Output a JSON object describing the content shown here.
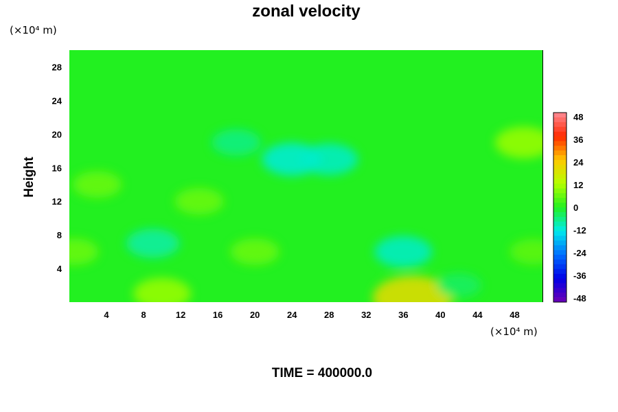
{
  "chart_data": {
    "type": "heatmap",
    "title": "zonal velocity",
    "ylabel": "Height",
    "xlabel": "",
    "x_unit": "(×10⁴ m)",
    "y_unit": "(×10⁴ m)",
    "xlim": [
      0,
      51
    ],
    "ylim": [
      0,
      30
    ],
    "x_ticks": [
      "4",
      "8",
      "12",
      "16",
      "20",
      "24",
      "28",
      "32",
      "36",
      "40",
      "44",
      "48"
    ],
    "y_ticks": [
      "4",
      "8",
      "12",
      "16",
      "20",
      "24",
      "28"
    ],
    "colorbar": {
      "range": [
        -48,
        48
      ],
      "labels": [
        "48",
        "36",
        "24",
        "12",
        "0",
        "-12",
        "-24",
        "-36",
        "-48"
      ]
    },
    "footer": "TIME = 400000.0",
    "features": [
      {
        "x": 9,
        "y": 7,
        "value": -8
      },
      {
        "x": 36,
        "y": 6,
        "value": -10
      },
      {
        "x": 24,
        "y": 17,
        "value": -11
      },
      {
        "x": 28,
        "y": 17,
        "value": -10
      },
      {
        "x": 18,
        "y": 19,
        "value": -6
      },
      {
        "x": 10,
        "y": 1,
        "value": 10
      },
      {
        "x": 37,
        "y": 0.5,
        "value": 20
      },
      {
        "x": 49,
        "y": 19,
        "value": 10
      },
      {
        "x": 3,
        "y": 14,
        "value": 6
      },
      {
        "x": 14,
        "y": 12,
        "value": 6
      },
      {
        "x": 20,
        "y": 6,
        "value": 6
      },
      {
        "x": 0.5,
        "y": 6,
        "value": 6
      },
      {
        "x": 50,
        "y": 6,
        "value": 5
      },
      {
        "x": 42,
        "y": 2,
        "value": -4
      }
    ]
  }
}
